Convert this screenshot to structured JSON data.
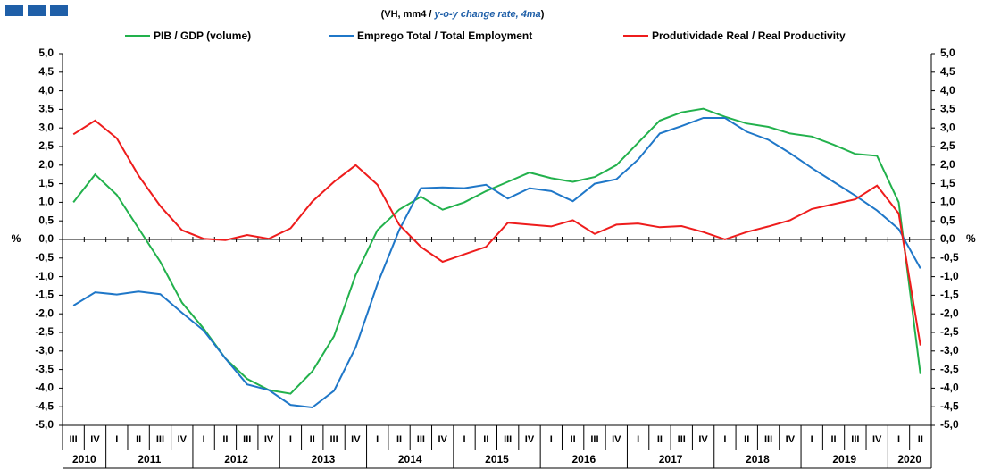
{
  "chart_data": {
    "type": "line",
    "title_parts": [
      "(VH, mm4 / ",
      "y-o-y change rate, 4ma",
      ")"
    ],
    "y_label": "%",
    "categories": [
      "III",
      "IV",
      "I",
      "II",
      "III",
      "IV",
      "I",
      "II",
      "III",
      "IV",
      "I",
      "II",
      "III",
      "IV",
      "I",
      "II",
      "III",
      "IV",
      "I",
      "II",
      "III",
      "IV",
      "I",
      "II",
      "III",
      "IV",
      "I",
      "II",
      "III",
      "IV",
      "I",
      "II",
      "III",
      "IV",
      "I",
      "II",
      "III",
      "IV",
      "I",
      "II"
    ],
    "years": [
      "2010",
      "2011",
      "2012",
      "2013",
      "2014",
      "2015",
      "2016",
      "2017",
      "2018",
      "2019",
      "2020"
    ],
    "series": [
      {
        "name": "PIB / GDP (volume)",
        "color": "#22b14c",
        "values": [
          1.0,
          1.75,
          1.2,
          0.3,
          -0.6,
          -1.7,
          -2.4,
          -3.2,
          -3.75,
          -4.05,
          -4.15,
          -3.55,
          -2.6,
          -0.95,
          0.25,
          0.8,
          1.15,
          0.8,
          1.0,
          1.3,
          1.55,
          1.8,
          1.65,
          1.55,
          1.68,
          2.0,
          2.6,
          3.2,
          3.42,
          3.52,
          3.3,
          3.12,
          3.03,
          2.85,
          2.77,
          2.55,
          2.3,
          2.25,
          1.0,
          -3.62
        ]
      },
      {
        "name": "Emprego Total / Total Employment",
        "color": "#1f77c8",
        "values": [
          -1.78,
          -1.42,
          -1.48,
          -1.4,
          -1.47,
          -1.97,
          -2.45,
          -3.2,
          -3.9,
          -4.05,
          -4.45,
          -4.52,
          -4.07,
          -2.9,
          -1.2,
          0.25,
          1.38,
          1.4,
          1.38,
          1.47,
          1.1,
          1.38,
          1.3,
          1.03,
          1.5,
          1.62,
          2.15,
          2.85,
          3.05,
          3.27,
          3.27,
          2.9,
          2.68,
          2.32,
          1.92,
          1.55,
          1.18,
          0.78,
          0.28,
          -0.78
        ]
      },
      {
        "name": "Produtividade Real / Real Productivity",
        "color": "#ee1c1c",
        "values": [
          2.83,
          3.2,
          2.72,
          1.72,
          0.9,
          0.25,
          0.02,
          -0.02,
          0.12,
          0.02,
          0.3,
          1.02,
          1.55,
          2.0,
          1.47,
          0.4,
          -0.2,
          -0.6,
          -0.4,
          -0.2,
          0.45,
          0.4,
          0.35,
          0.52,
          0.15,
          0.4,
          0.43,
          0.33,
          0.36,
          0.2,
          0.0,
          0.2,
          0.35,
          0.52,
          0.82,
          0.95,
          1.08,
          1.45,
          0.7,
          -2.85
        ]
      }
    ],
    "ylim": [
      -5,
      5
    ],
    "yticks": [
      {
        "value": -5,
        "label": "-5,0"
      },
      {
        "value": -4.5,
        "label": "-4,5"
      },
      {
        "value": -4,
        "label": "-4,0"
      },
      {
        "value": -3.5,
        "label": "-3,5"
      },
      {
        "value": -3,
        "label": "-3,0"
      },
      {
        "value": -2.5,
        "label": "-2,5"
      },
      {
        "value": -2,
        "label": "-2,0"
      },
      {
        "value": -1.5,
        "label": "-1,5"
      },
      {
        "value": -1,
        "label": "-1,0"
      },
      {
        "value": -0.5,
        "label": "-0,5"
      },
      {
        "value": 0,
        "label": "0,0"
      },
      {
        "value": 0.5,
        "label": "0,5"
      },
      {
        "value": 1,
        "label": "1,0"
      },
      {
        "value": 1.5,
        "label": "1,5"
      },
      {
        "value": 2,
        "label": "2,0"
      },
      {
        "value": 2.5,
        "label": "2,5"
      },
      {
        "value": 3,
        "label": "3,0"
      },
      {
        "value": 3.5,
        "label": "3,5"
      },
      {
        "value": 4,
        "label": "4,0"
      },
      {
        "value": 4.5,
        "label": "4,5"
      },
      {
        "value": 5,
        "label": "5,0"
      }
    ]
  }
}
